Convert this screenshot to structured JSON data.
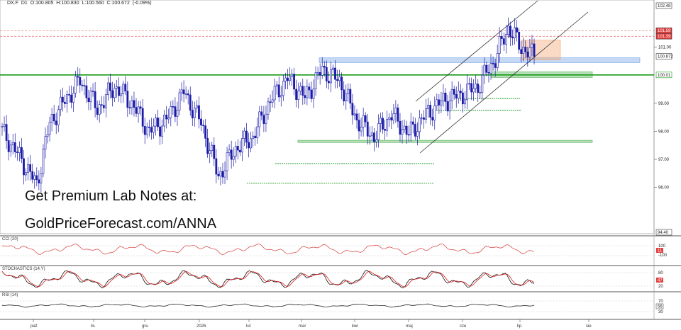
{
  "header": {
    "symbol": "DX.F",
    "timeframe": "D1",
    "open": "O:100.805",
    "high": "H:100.830",
    "low": "L:100.560",
    "close": "C:100.672",
    "change": "(-0.09%)"
  },
  "promo": {
    "line1": "Get Premium Lab Notes at:",
    "line2": "GoldPriceForecast.com/ANNA"
  },
  "colors": {
    "candle": "#1a1aa8",
    "green_level": "#139a13",
    "green_zone": "#4caf50",
    "blue_zone": "#6fa0e6",
    "orange_zone": "#f2a36b",
    "red_level": "#e04040",
    "cci_line": "#d9534f",
    "stoch_k": "#111111",
    "stoch_d": "#d62020",
    "rsi_line": "#222222"
  },
  "chart_data": {
    "type": "candlestick",
    "y_ticks": [
      "102.48",
      "101.59",
      "101.39",
      "101.00",
      "100.672",
      "100.01",
      "99.00",
      "98.00",
      "97.00",
      "96.00",
      "94.40"
    ],
    "ylim": [
      94.4,
      102.48
    ],
    "x_ticks": [
      "paź",
      "lis",
      "gru",
      "2026",
      "sty",
      "lut",
      "mar",
      "kwi",
      "maj",
      "cze",
      "lip",
      "sie"
    ],
    "last_price": 100.672,
    "levels": {
      "support_green": 100.01,
      "resistance_red_1": 101.59,
      "resistance_red_2": 101.39
    },
    "zones": [
      {
        "kind": "blue",
        "from": 100.45,
        "to": 100.62
      },
      {
        "kind": "orange",
        "from": 100.55,
        "to": 101.25
      },
      {
        "kind": "green",
        "from": 99.92,
        "to": 100.12
      },
      {
        "kind": "green",
        "from": 97.6,
        "to": 97.68
      }
    ],
    "anchor_points": [
      {
        "i": 0,
        "close": 98.0
      },
      {
        "i": 8,
        "close": 97.1
      },
      {
        "i": 16,
        "close": 96.1
      },
      {
        "i": 22,
        "close": 98.3
      },
      {
        "i": 30,
        "close": 99.2
      },
      {
        "i": 36,
        "close": 99.8
      },
      {
        "i": 44,
        "close": 98.8
      },
      {
        "i": 52,
        "close": 99.6
      },
      {
        "i": 60,
        "close": 99.0
      },
      {
        "i": 68,
        "close": 98.0
      },
      {
        "i": 76,
        "close": 98.4
      },
      {
        "i": 84,
        "close": 99.4
      },
      {
        "i": 92,
        "close": 98.3
      },
      {
        "i": 100,
        "close": 96.4
      },
      {
        "i": 108,
        "close": 97.4
      },
      {
        "i": 116,
        "close": 97.8
      },
      {
        "i": 124,
        "close": 99.1
      },
      {
        "i": 132,
        "close": 99.9
      },
      {
        "i": 140,
        "close": 99.2
      },
      {
        "i": 148,
        "close": 100.2
      },
      {
        "i": 156,
        "close": 99.8
      },
      {
        "i": 164,
        "close": 98.4
      },
      {
        "i": 172,
        "close": 97.8
      },
      {
        "i": 180,
        "close": 98.6
      },
      {
        "i": 188,
        "close": 97.9
      },
      {
        "i": 196,
        "close": 98.6
      },
      {
        "i": 204,
        "close": 99.1
      },
      {
        "i": 212,
        "close": 99.3
      },
      {
        "i": 220,
        "close": 99.6
      },
      {
        "i": 228,
        "close": 100.6
      },
      {
        "i": 234,
        "close": 101.7
      },
      {
        "i": 240,
        "close": 101.0
      },
      {
        "i": 246,
        "close": 100.67
      }
    ],
    "indicators": [
      {
        "name": "CCI (20)",
        "ticks": [
          "100",
          "-100"
        ],
        "last": "11"
      },
      {
        "name": "STOCHASTICS (14,Y)",
        "ticks": [
          "80",
          "20"
        ],
        "last": "47"
      },
      {
        "name": "RSI (14)",
        "ticks": [
          "70",
          "30"
        ],
        "last": "56"
      }
    ]
  }
}
